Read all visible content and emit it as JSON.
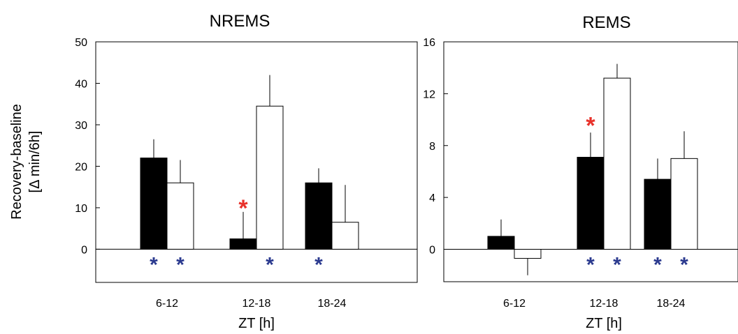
{
  "ylabel_line1": "Recovery-baseline",
  "ylabel_line2": "[Δ min/6h]",
  "colors": {
    "filled": "#000000",
    "open": "#ffffff",
    "red_star": "#e8322b",
    "blue_star": "#2b3a8f"
  },
  "chart_data": [
    {
      "type": "bar",
      "title": "NREMS",
      "xlabel": "ZT [h]",
      "categories": [
        "6-12",
        "12-18",
        "18-24"
      ],
      "ylim": [
        -8,
        50
      ],
      "yticks": [
        "0",
        "10",
        "20",
        "30",
        "40",
        "50"
      ],
      "series": [
        {
          "fill": "black",
          "values": [
            22,
            2.5,
            16
          ],
          "errors": [
            4.5,
            6.5,
            3.5
          ],
          "err_dir": [
            1,
            1,
            1
          ]
        },
        {
          "fill": "white",
          "values": [
            16,
            34.5,
            6.5
          ],
          "errors": [
            5.5,
            7.5,
            9
          ],
          "err_dir": [
            1,
            1,
            1
          ]
        }
      ],
      "annotations": [
        {
          "text": "*",
          "color": "red",
          "category": 1,
          "series": 0,
          "y": 11
        },
        {
          "text": "*",
          "color": "blue",
          "category": 0,
          "series": 0,
          "below_zero": true
        },
        {
          "text": "*",
          "color": "blue",
          "category": 0,
          "series": 1,
          "below_zero": true
        },
        {
          "text": "*",
          "color": "blue",
          "category": 1,
          "series": 1,
          "below_zero": true
        },
        {
          "text": "*",
          "color": "blue",
          "category": 2,
          "series": 0,
          "below_zero": true
        }
      ]
    },
    {
      "type": "bar",
      "title": "REMS",
      "xlabel": "ZT [h]",
      "categories": [
        "6-12",
        "12-18",
        "18-24"
      ],
      "ylim": [
        -2.5,
        16
      ],
      "yticks": [
        "0",
        "4",
        "8",
        "12",
        "16"
      ],
      "series": [
        {
          "fill": "black",
          "values": [
            1,
            7.1,
            5.4
          ],
          "errors": [
            1.3,
            1.9,
            1.6
          ],
          "err_dir": [
            1,
            1,
            1
          ]
        },
        {
          "fill": "white",
          "values": [
            -0.7,
            13.2,
            7
          ],
          "errors": [
            1.3,
            1.1,
            2.1
          ],
          "err_dir": [
            -1,
            1,
            1
          ]
        }
      ],
      "annotations": [
        {
          "text": "*",
          "color": "red",
          "category": 1,
          "series": 0,
          "y": 9.9
        },
        {
          "text": "*",
          "color": "blue",
          "category": 1,
          "series": 0,
          "below_zero": true
        },
        {
          "text": "*",
          "color": "blue",
          "category": 1,
          "series": 1,
          "below_zero": true
        },
        {
          "text": "*",
          "color": "blue",
          "category": 2,
          "series": 0,
          "below_zero": true
        },
        {
          "text": "*",
          "color": "blue",
          "category": 2,
          "series": 1,
          "below_zero": true
        }
      ]
    }
  ]
}
